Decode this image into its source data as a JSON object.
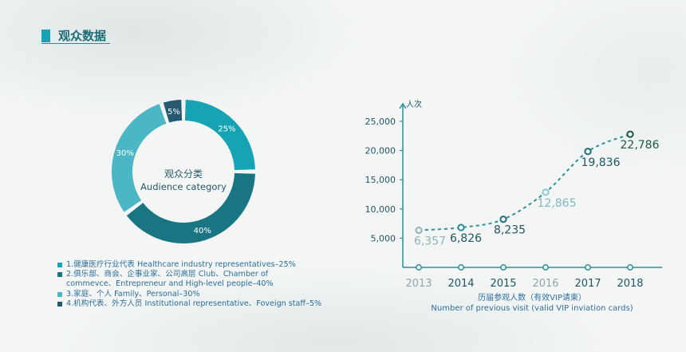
{
  "header": {
    "title": "观众数据"
  },
  "donut": {
    "center_zh": "观众分类",
    "center_en": "Audience category"
  },
  "legend": [
    {
      "text": "1.健康医疗行业代表 Healthcare industry representatives–25%",
      "color": "#16a3b3"
    },
    {
      "text": "2.俱乐部、商会、企事业家、公司高层 Club、Chamber of\ncommevce、Entrepreneur and High-level people–40%",
      "color": "#1a7583"
    },
    {
      "text": "3.家庭、个人 Family、Personal–30%",
      "color": "#4bb6c4"
    },
    {
      "text": "4.机构代表、外方人员 Institutional representative、Foveign staff–5%",
      "color": "#245970"
    }
  ],
  "caption": {
    "zh": "历届参观人数（有效VIP请柬）",
    "en": "Number of previous visit (valid VIP inviation cards)"
  },
  "chart_data": [
    {
      "type": "pie",
      "categories": [
        "1",
        "2",
        "3",
        "4"
      ],
      "values": [
        25,
        40,
        30,
        5
      ],
      "data_labels": [
        "25%",
        "40%",
        "30%",
        "5%"
      ],
      "colors": [
        "#16a3b3",
        "#1a7583",
        "#4bb6c4",
        "#245970"
      ]
    },
    {
      "type": "line",
      "x": [
        "2013",
        "2014",
        "2015",
        "2016",
        "2017",
        "2018"
      ],
      "values": [
        6357,
        6826,
        8235,
        12865,
        19836,
        22786
      ],
      "data_labels": [
        "6,357",
        "6,826",
        "8,235",
        "12,865",
        "19,836",
        "22,786"
      ],
      "label_colors": [
        "#8fb4b9",
        "#1f5761",
        "#1f5761",
        "#7fb8bd",
        "#1f5761",
        "#1a5a43"
      ],
      "point_colors": [
        "#8fb4b9",
        "#2a8f99",
        "#1f6f7a",
        "#8fc6ca",
        "#1f6f7a",
        "#1a5a43"
      ],
      "tick_label_colors": [
        "#8fa6aa",
        "#1f5761",
        "#1f5761",
        "#8fa6aa",
        "#1f5761",
        "#1f5761"
      ],
      "yticks": [
        "5,000",
        "10,000",
        "15,000",
        "20,000",
        "25,000"
      ],
      "ytick_values": [
        5000,
        10000,
        15000,
        20000,
        25000
      ],
      "ylabel": "人次",
      "ylim": [
        0,
        28000
      ],
      "line_color": "#2a9199"
    }
  ]
}
